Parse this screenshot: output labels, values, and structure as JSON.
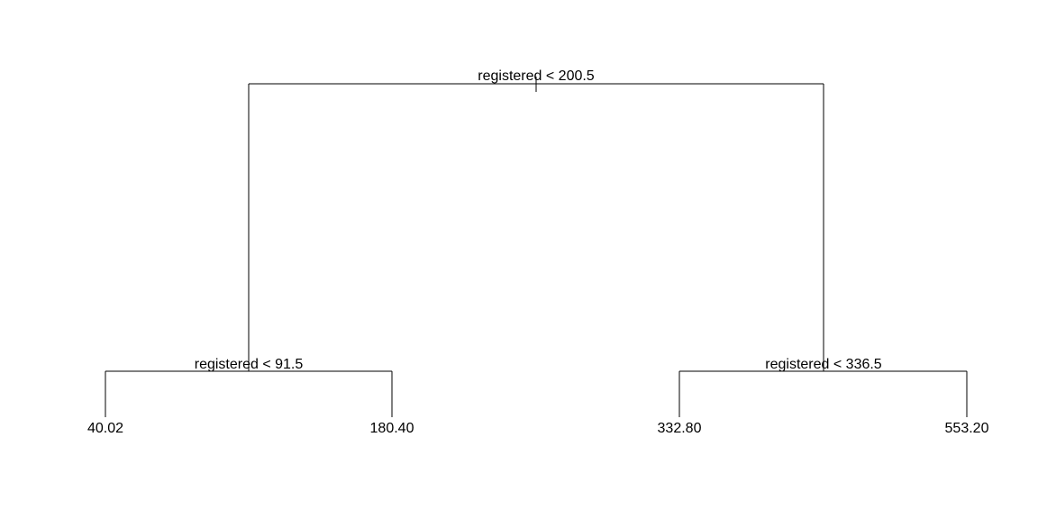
{
  "tree": {
    "splits": {
      "root": "registered < 200.5",
      "left": "registered < 91.5",
      "right": "registered < 336.5"
    },
    "leaves": {
      "left_left": "40.02",
      "left_right": "180.40",
      "right_left": "332.80",
      "right_right": "553.20"
    }
  }
}
